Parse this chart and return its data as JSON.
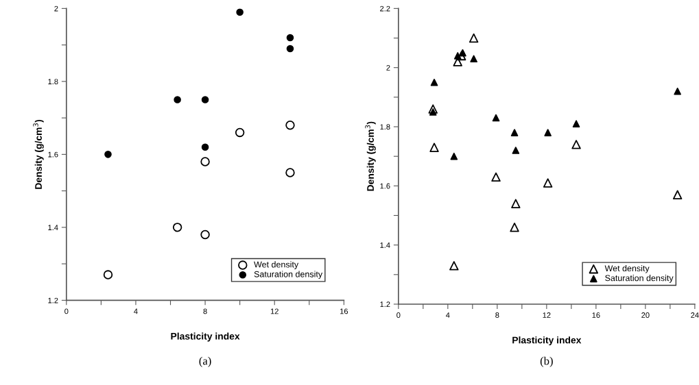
{
  "chart_data": [
    {
      "type": "scatter",
      "xlabel": "Plasticity index",
      "ylabel": "Density (g/cm$^{3}$)",
      "annotations": [
        "(a)"
      ],
      "xlim": [
        0,
        16
      ],
      "ylim": [
        1.2,
        2.0
      ],
      "xticks": [
        0,
        {
          "value": 2,
          "label": null
        },
        4,
        {
          "value": 6,
          "label": null
        },
        8,
        {
          "value": 10,
          "label": null
        },
        12,
        {
          "value": 14,
          "label": null
        },
        16
      ],
      "yticks": [
        1.2,
        {
          "value": 1.3,
          "label": null
        },
        1.4,
        {
          "value": 1.5,
          "label": null
        },
        1.6,
        {
          "value": 1.7,
          "label": null
        },
        1.8,
        {
          "value": 1.9,
          "label": null
        },
        {
          "value": 2.0,
          "label": "2"
        }
      ],
      "marker": "circle",
      "grid": false,
      "legend": "bottom right",
      "series": [
        {
          "name": "Wet density",
          "color": "#ffffff",
          "x": [
            2.4,
            6.4,
            8,
            8,
            10,
            12.9,
            12.9
          ],
          "values": [
            1.27,
            1.4,
            1.38,
            1.58,
            1.66,
            1.68,
            1.55
          ]
        },
        {
          "name": "Saturation density",
          "color": "#000000",
          "x": [
            2.4,
            6.4,
            8,
            8,
            10,
            12.9,
            12.9
          ],
          "values": [
            1.6,
            1.75,
            1.75,
            1.62,
            1.99,
            1.92,
            1.89
          ]
        }
      ]
    },
    {
      "type": "scatter",
      "xlabel": "Plasticity index",
      "ylabel": "Density (g/cm$^{3}$)",
      "annotations": [
        "(b)"
      ],
      "xlim": [
        0,
        24
      ],
      "ylim": [
        1.2,
        2.2
      ],
      "xticks": [
        0,
        {
          "value": 2,
          "label": null
        },
        4,
        {
          "value": 6,
          "label": null
        },
        8,
        {
          "value": 10,
          "label": null
        },
        12,
        {
          "value": 14,
          "label": null
        },
        16,
        {
          "value": 18,
          "label": null
        },
        20,
        {
          "value": 22,
          "label": null
        },
        24
      ],
      "yticks": [
        1.2,
        {
          "value": 1.3,
          "label": null
        },
        1.4,
        {
          "value": 1.5,
          "label": null
        },
        1.6,
        {
          "value": 1.7,
          "label": null
        },
        1.8,
        {
          "value": 1.9,
          "label": null
        },
        {
          "value": 2.0,
          "label": "2"
        },
        {
          "value": 2.1,
          "label": null
        },
        2.2
      ],
      "marker": "triangle",
      "grid": false,
      "legend": "bottom right",
      "series": [
        {
          "name": "Wet density",
          "color": "#ffffff",
          "x": [
            2.9,
            2.8,
            4.5,
            4.8,
            5.1,
            6.1,
            7.9,
            9.5,
            9.4,
            12.1,
            14.4,
            22.6
          ],
          "values": [
            1.73,
            1.86,
            1.33,
            2.02,
            2.04,
            2.1,
            1.63,
            1.54,
            1.46,
            1.61,
            1.74,
            1.57
          ]
        },
        {
          "name": "Saturation density",
          "color": "#000000",
          "x": [
            2.9,
            2.8,
            4.5,
            4.8,
            5.2,
            6.1,
            7.9,
            9.4,
            9.5,
            12.1,
            14.4,
            22.6
          ],
          "values": [
            1.95,
            1.85,
            1.7,
            2.04,
            2.05,
            2.03,
            1.83,
            1.78,
            1.72,
            1.78,
            1.81,
            1.92
          ]
        }
      ]
    }
  ]
}
